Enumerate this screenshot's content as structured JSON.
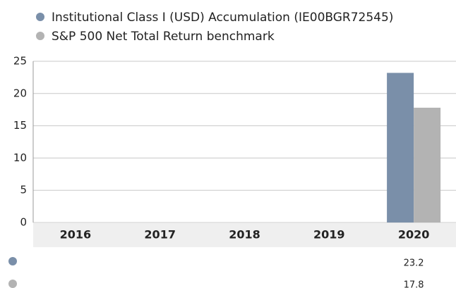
{
  "chart_data": {
    "type": "bar",
    "categories": [
      "2016",
      "2017",
      "2018",
      "2019",
      "2020"
    ],
    "series": [
      {
        "name": "Institutional Class I (USD) Accumulation (IE00BGR72545)",
        "color": "#7a8fa9",
        "values": [
          null,
          null,
          null,
          null,
          23.2
        ]
      },
      {
        "name": "S&P 500 Net Total Return benchmark",
        "color": "#b3b3b3",
        "values": [
          null,
          null,
          null,
          null,
          17.8
        ]
      }
    ],
    "ylim": [
      0,
      25
    ],
    "yticks": [
      0,
      5,
      10,
      15,
      20,
      25
    ],
    "grid": true,
    "legend": "top"
  }
}
